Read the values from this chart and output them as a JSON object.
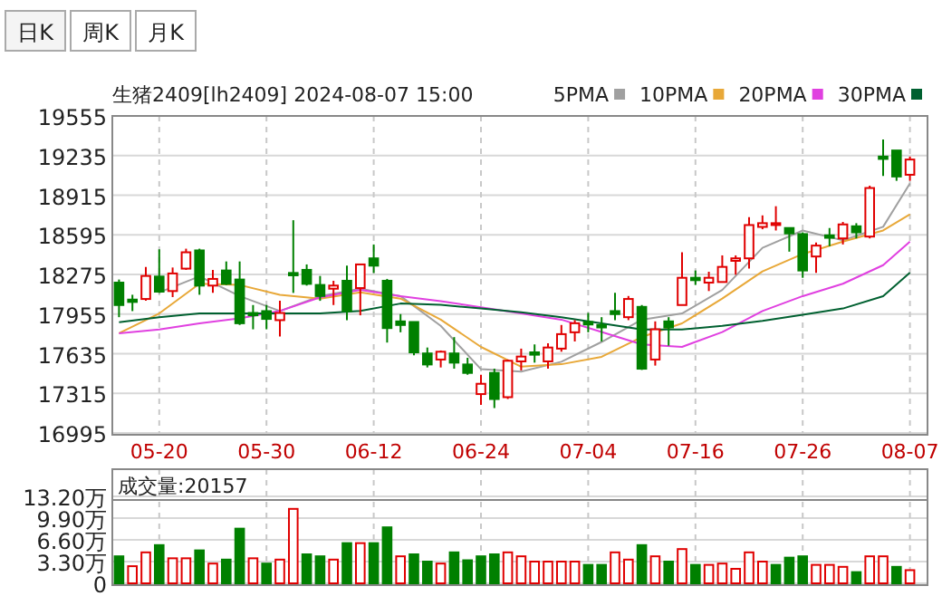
{
  "chart_data": [
    {
      "type": "candlestick",
      "title": "生猪2409[lh2409] 2024-08-07 15:00",
      "annotations": [
        "日K",
        "周K",
        "月K"
      ],
      "categories": [
        null,
        null,
        null,
        "05-20",
        null,
        null,
        null,
        null,
        null,
        null,
        null,
        "05-30",
        null,
        null,
        null,
        null,
        null,
        null,
        null,
        "06-12",
        null,
        null,
        null,
        null,
        null,
        null,
        null,
        "06-24",
        null,
        null,
        null,
        null,
        null,
        null,
        null,
        "07-04",
        null,
        null,
        null,
        null,
        null,
        null,
        null,
        "07-16",
        null,
        null,
        null,
        null,
        null,
        null,
        null,
        "07-26",
        null,
        null,
        null,
        null,
        null,
        null,
        null,
        "08-07"
      ],
      "ohlc": [
        [
          18209,
          18234,
          17930,
          18028
        ],
        [
          18072,
          18111,
          17979,
          18053
        ],
        [
          18077,
          18336,
          18062,
          18263
        ],
        [
          18258,
          18478,
          18126,
          18136
        ],
        [
          18141,
          18331,
          18092,
          18283
        ],
        [
          18322,
          18483,
          18312,
          18454
        ],
        [
          18469,
          18483,
          18111,
          18185
        ],
        [
          18185,
          18312,
          18126,
          18239
        ],
        [
          18307,
          18380,
          18190,
          18199
        ],
        [
          18234,
          18380,
          17867,
          17881
        ],
        [
          17964,
          18028,
          17832,
          17945
        ],
        [
          17979,
          18028,
          17832,
          17916
        ],
        [
          17906,
          18062,
          17774,
          17964
        ],
        [
          18287,
          18713,
          18126,
          18268
        ],
        [
          18312,
          18356,
          18185,
          18199
        ],
        [
          18190,
          18263,
          18062,
          18101
        ],
        [
          18160,
          18224,
          18028,
          18185
        ],
        [
          18224,
          18346,
          17906,
          17979
        ],
        [
          18165,
          18356,
          17945,
          18356
        ],
        [
          18405,
          18517,
          18287,
          18346
        ],
        [
          18224,
          18239,
          17725,
          17842
        ],
        [
          17896,
          17955,
          17808,
          17867
        ],
        [
          17891,
          17891,
          17622,
          17646
        ],
        [
          17637,
          17685,
          17524,
          17548
        ],
        [
          17588,
          17661,
          17524,
          17651
        ],
        [
          17637,
          17769,
          17514,
          17563
        ],
        [
          17548,
          17602,
          17465,
          17480
        ],
        [
          17309,
          17465,
          17221,
          17392
        ],
        [
          17480,
          17514,
          17196,
          17269
        ],
        [
          17284,
          17588,
          17269,
          17578
        ],
        [
          17573,
          17676,
          17500,
          17612
        ],
        [
          17646,
          17710,
          17563,
          17627
        ],
        [
          17573,
          17720,
          17514,
          17685
        ],
        [
          17676,
          17867,
          17651,
          17793
        ],
        [
          17808,
          17906,
          17734,
          17881
        ],
        [
          17891,
          17964,
          17808,
          17871
        ],
        [
          17867,
          17930,
          17734,
          17847
        ],
        [
          17979,
          18126,
          17906,
          17955
        ],
        [
          17930,
          18101,
          17906,
          18077
        ],
        [
          18013,
          18028,
          17504,
          17514
        ],
        [
          17588,
          17896,
          17539,
          17832
        ],
        [
          17896,
          17930,
          17700,
          17847
        ],
        [
          18028,
          18454,
          18028,
          18248
        ],
        [
          18248,
          18307,
          18190,
          18229
        ],
        [
          18209,
          18297,
          18141,
          18248
        ],
        [
          18214,
          18429,
          18209,
          18336
        ],
        [
          18385,
          18429,
          18273,
          18405
        ],
        [
          18405,
          18738,
          18322,
          18674
        ],
        [
          18659,
          18752,
          18640,
          18689
        ],
        [
          18674,
          18826,
          18630,
          18689
        ],
        [
          18650,
          18650,
          18459,
          18606
        ],
        [
          18601,
          18615,
          18248,
          18307
        ],
        [
          18420,
          18532,
          18287,
          18508
        ],
        [
          18591,
          18650,
          18503,
          18571
        ],
        [
          18566,
          18699,
          18517,
          18679
        ],
        [
          18664,
          18689,
          18566,
          18615
        ],
        [
          18581,
          18992,
          18566,
          18973
        ],
        [
          19227,
          19364,
          19070,
          19208
        ],
        [
          19276,
          19276,
          19031,
          19066
        ],
        [
          19080,
          19227,
          19031,
          19203
        ]
      ],
      "series": [
        {
          "name": "5PMA",
          "type": "line",
          "color": "#a0a0a0",
          "values": [
            null,
            null,
            null,
            18130,
            null,
            null,
            18260,
            null,
            null,
            18100,
            null,
            null,
            17980,
            null,
            null,
            18100,
            null,
            null,
            18160,
            null,
            null,
            18100,
            null,
            null,
            17860,
            null,
            null,
            17510,
            null,
            null,
            17490,
            null,
            null,
            17570,
            null,
            null,
            17730,
            null,
            null,
            17910,
            null,
            null,
            17960,
            null,
            null,
            18150,
            null,
            null,
            18490,
            null,
            null,
            18630,
            null,
            null,
            18550,
            null,
            null,
            18660,
            null,
            19010
          ]
        },
        {
          "name": "10PMA",
          "type": "line",
          "color": "#e8a838",
          "values": [
            17800,
            null,
            null,
            17960,
            null,
            null,
            18200,
            null,
            null,
            18190,
            null,
            null,
            18110,
            null,
            null,
            18080,
            null,
            null,
            18130,
            null,
            null,
            18080,
            null,
            null,
            17910,
            null,
            null,
            17690,
            null,
            null,
            17530,
            null,
            null,
            17550,
            null,
            null,
            17610,
            null,
            null,
            17770,
            null,
            null,
            17880,
            null,
            null,
            18080,
            null,
            null,
            18300,
            null,
            null,
            18440,
            null,
            null,
            18540,
            null,
            null,
            18630,
            null,
            18760
          ]
        },
        {
          "name": "20PMA",
          "type": "line",
          "color": "#e040e0",
          "values": [
            17800,
            null,
            null,
            17830,
            null,
            null,
            17880,
            null,
            null,
            17920,
            null,
            null,
            17980,
            null,
            null,
            18090,
            null,
            null,
            18150,
            null,
            null,
            18100,
            null,
            null,
            18060,
            null,
            null,
            18010,
            null,
            null,
            17960,
            null,
            null,
            17910,
            null,
            null,
            17810,
            null,
            null,
            17710,
            null,
            null,
            17690,
            null,
            null,
            17810,
            null,
            null,
            17980,
            null,
            null,
            18100,
            null,
            null,
            18200,
            null,
            null,
            18350,
            null,
            18540
          ]
        },
        {
          "name": "30PMA",
          "type": "line",
          "color": "#006030",
          "values": [
            17890,
            null,
            null,
            17930,
            null,
            null,
            17960,
            null,
            null,
            17960,
            null,
            null,
            17960,
            null,
            null,
            17960,
            null,
            null,
            17980,
            null,
            null,
            18040,
            null,
            null,
            18030,
            null,
            null,
            18000,
            null,
            null,
            17970,
            null,
            null,
            17930,
            null,
            null,
            17880,
            null,
            null,
            17830,
            null,
            null,
            17830,
            null,
            null,
            17860,
            null,
            null,
            17900,
            null,
            null,
            17950,
            null,
            null,
            18000,
            null,
            null,
            18100,
            null,
            18290
          ]
        }
      ],
      "ylim": [
        16995,
        19555
      ],
      "yticks": [
        16995,
        17315,
        17635,
        17955,
        18275,
        18595,
        18915,
        19235,
        19555
      ],
      "grid": true,
      "legend": "top right"
    },
    {
      "type": "bar",
      "title": "成交量:20157",
      "tick_labels": "y",
      "categories": [
        null,
        null,
        null,
        null,
        null,
        null,
        null,
        null,
        null,
        null,
        null,
        null,
        null,
        null,
        null,
        null,
        null,
        null,
        null,
        null,
        null,
        null,
        null,
        null,
        null,
        null,
        null,
        null,
        null,
        null,
        null,
        null,
        null,
        null,
        null,
        null,
        null,
        null,
        null,
        null,
        null,
        null,
        null,
        null,
        null,
        null,
        null,
        null,
        null,
        null,
        null,
        null,
        null,
        null,
        null,
        null,
        null,
        null,
        null,
        null
      ],
      "values": [
        4.1,
        2.6,
        4.7,
        5.8,
        3.8,
        3.8,
        5.0,
        3.0,
        3.6,
        8.3,
        3.8,
        3.0,
        3.6,
        11.3,
        4.4,
        4.1,
        3.6,
        6.1,
        6.1,
        6.1,
        8.5,
        4.1,
        4.4,
        3.3,
        3.0,
        4.7,
        3.5,
        4.1,
        4.4,
        4.7,
        4.1,
        3.3,
        3.3,
        3.3,
        3.3,
        2.8,
        2.8,
        4.7,
        3.6,
        5.8,
        4.1,
        3.3,
        5.2,
        2.8,
        2.8,
        3.0,
        2.2,
        4.7,
        3.3,
        2.8,
        3.9,
        4.1,
        2.8,
        2.8,
        2.5,
        1.7,
        4.1,
        4.1,
        2.5,
        2.0
      ],
      "colors": [
        "#008000",
        "#e00000",
        "#e00000",
        "#008000",
        "#e00000",
        "#e00000",
        "#008000",
        "#e00000",
        "#008000",
        "#008000",
        "#e00000",
        "#008000",
        "#e00000",
        "#e00000",
        "#008000",
        "#008000",
        "#e00000",
        "#008000",
        "#e00000",
        "#008000",
        "#008000",
        "#e00000",
        "#008000",
        "#008000",
        "#e00000",
        "#008000",
        "#008000",
        "#008000",
        "#008000",
        "#e00000",
        "#e00000",
        "#e00000",
        "#e00000",
        "#e00000",
        "#e00000",
        "#008000",
        "#008000",
        "#e00000",
        "#e00000",
        "#008000",
        "#e00000",
        "#008000",
        "#e00000",
        "#008000",
        "#e00000",
        "#e00000",
        "#e00000",
        "#e00000",
        "#e00000",
        "#008000",
        "#008000",
        "#008000",
        "#e00000",
        "#e00000",
        "#e00000",
        "#008000",
        "#e00000",
        "#e00000",
        "#008000",
        "#e00000"
      ],
      "ylim": [
        0,
        13.2
      ],
      "yticks": [
        0,
        {
          "value": 3.3,
          "label": "3.30万"
        },
        {
          "value": 6.6,
          "label": "6.60万"
        },
        {
          "value": 9.9,
          "label": "9.90万"
        },
        {
          "value": 13.2,
          "label": "13.20万"
        }
      ],
      "grid": true
    }
  ]
}
